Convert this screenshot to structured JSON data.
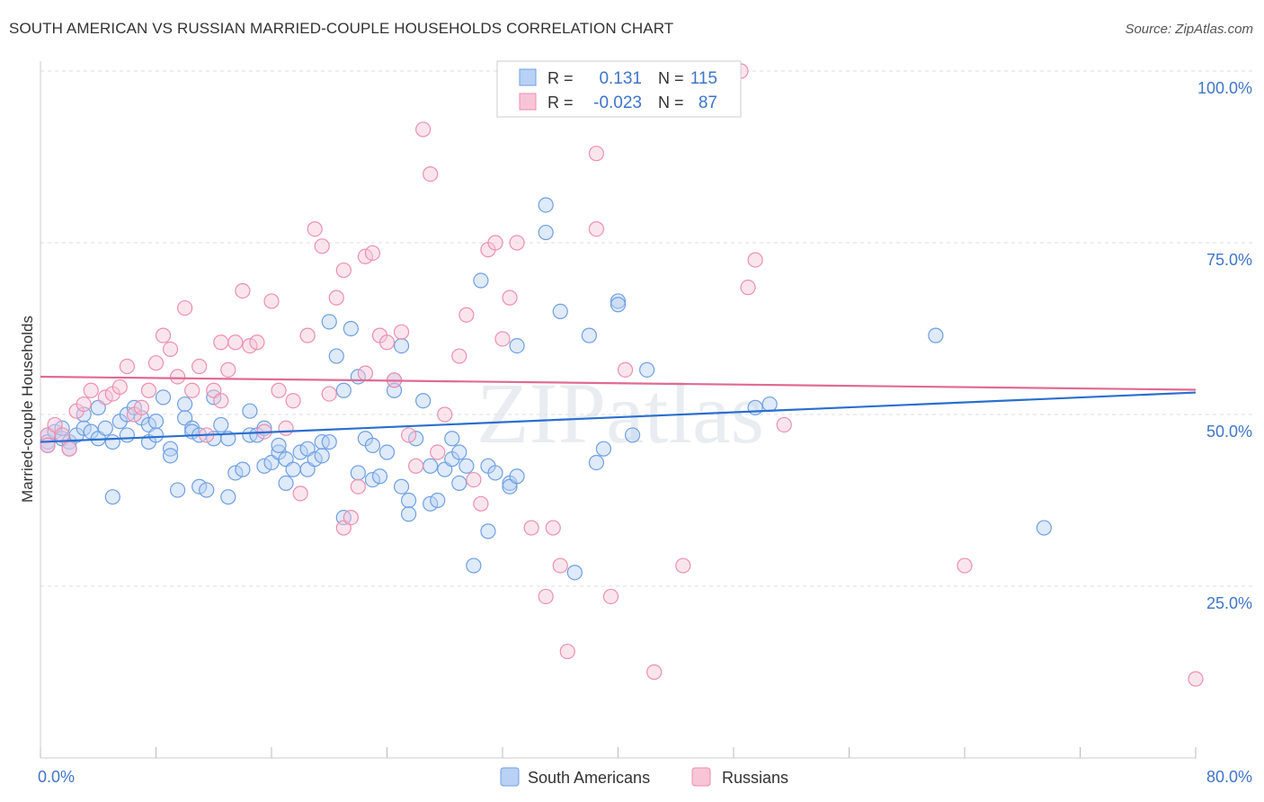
{
  "title": "SOUTH AMERICAN VS RUSSIAN MARRIED-COUPLE HOUSEHOLDS CORRELATION CHART",
  "source": "Source: ZipAtlas.com",
  "watermark": "ZIPatlas",
  "colors": {
    "south_americans": "#6e9fe3",
    "south_americans_fill": "#b9d1f4",
    "south_americans_line": "#2a6fcf",
    "russians": "#ec8fb0",
    "russians_fill": "#f7c5d6",
    "russians_line": "#e06b92",
    "axis_text": "#3f75c8",
    "grid": "#dddddd"
  },
  "legend_top": [
    {
      "series": "South Americans",
      "r_label": "R =",
      "r_value": "0.131",
      "n_label": "N =",
      "n_value": "115"
    },
    {
      "series": "Russians",
      "r_label": "R =",
      "r_value": "-0.023",
      "n_label": "N =",
      "n_value": "87"
    }
  ],
  "chart_data": {
    "type": "scatter",
    "title": "SOUTH AMERICAN VS RUSSIAN MARRIED-COUPLE HOUSEHOLDS CORRELATION CHART",
    "xlabel": "",
    "ylabel": "Married-couple Households",
    "xlim": [
      0,
      80
    ],
    "ylim": [
      0,
      102
    ],
    "x_tick_labels": [
      "0.0%",
      "80.0%"
    ],
    "y_ticks": [
      25,
      50,
      75,
      100
    ],
    "y_tick_labels": [
      "25.0%",
      "50.0%",
      "75.0%",
      "100.0%"
    ],
    "grid": "horizontal dashed",
    "legend_position": "bottom",
    "series": [
      {
        "name": "South Americans",
        "trend": {
          "x": [
            0,
            80
          ],
          "y": [
            46.0,
            53.2
          ]
        },
        "points": [
          [
            0.5,
            47.0
          ],
          [
            0.5,
            46.0
          ],
          [
            1.0,
            47.5
          ],
          [
            1.5,
            46.5
          ],
          [
            1.5,
            48.0
          ],
          [
            2.0,
            46.0
          ],
          [
            2.0,
            45.0
          ],
          [
            2.5,
            47.0
          ],
          [
            3.0,
            48.0
          ],
          [
            3.0,
            50.0
          ],
          [
            3.5,
            47.5
          ],
          [
            4.0,
            51.0
          ],
          [
            4.0,
            46.5
          ],
          [
            4.5,
            48.0
          ],
          [
            5.0,
            38.0
          ],
          [
            5.0,
            46.0
          ],
          [
            5.5,
            49.0
          ],
          [
            6.0,
            47.0
          ],
          [
            6.0,
            50.0
          ],
          [
            6.5,
            51.0
          ],
          [
            7.0,
            49.5
          ],
          [
            7.5,
            48.5
          ],
          [
            7.5,
            46.0
          ],
          [
            8.0,
            49.0
          ],
          [
            8.0,
            47.0
          ],
          [
            8.5,
            52.5
          ],
          [
            9.0,
            45.0
          ],
          [
            9.0,
            44.0
          ],
          [
            9.5,
            39.0
          ],
          [
            10.0,
            51.5
          ],
          [
            10.0,
            49.5
          ],
          [
            10.5,
            48.0
          ],
          [
            10.5,
            47.5
          ],
          [
            11.0,
            47.0
          ],
          [
            11.0,
            39.5
          ],
          [
            11.5,
            39.0
          ],
          [
            12.0,
            46.5
          ],
          [
            12.0,
            52.5
          ],
          [
            12.5,
            48.5
          ],
          [
            13.0,
            38.0
          ],
          [
            13.0,
            46.5
          ],
          [
            13.5,
            41.5
          ],
          [
            14.0,
            42.0
          ],
          [
            14.5,
            47.0
          ],
          [
            14.5,
            50.5
          ],
          [
            15.0,
            47.0
          ],
          [
            15.5,
            48.0
          ],
          [
            15.5,
            42.5
          ],
          [
            16.0,
            43.0
          ],
          [
            16.5,
            44.5
          ],
          [
            16.5,
            45.5
          ],
          [
            17.0,
            40.0
          ],
          [
            17.0,
            43.5
          ],
          [
            17.5,
            42.0
          ],
          [
            18.0,
            44.5
          ],
          [
            18.5,
            42.0
          ],
          [
            18.5,
            45.0
          ],
          [
            19.0,
            43.5
          ],
          [
            19.5,
            46.0
          ],
          [
            19.5,
            44.0
          ],
          [
            20.0,
            46.0
          ],
          [
            20.0,
            63.5
          ],
          [
            20.5,
            58.5
          ],
          [
            21.0,
            53.5
          ],
          [
            21.0,
            35.0
          ],
          [
            21.5,
            62.5
          ],
          [
            22.0,
            41.5
          ],
          [
            22.0,
            55.5
          ],
          [
            22.5,
            46.5
          ],
          [
            23.0,
            45.5
          ],
          [
            23.0,
            40.5
          ],
          [
            23.5,
            41.0
          ],
          [
            24.0,
            44.5
          ],
          [
            24.5,
            55.0
          ],
          [
            24.5,
            53.5
          ],
          [
            25.0,
            39.5
          ],
          [
            25.0,
            60.0
          ],
          [
            25.5,
            37.5
          ],
          [
            25.5,
            35.5
          ],
          [
            26.0,
            46.5
          ],
          [
            26.5,
            52.0
          ],
          [
            27.0,
            42.5
          ],
          [
            27.0,
            37.0
          ],
          [
            27.5,
            37.5
          ],
          [
            28.0,
            42.0
          ],
          [
            28.5,
            46.5
          ],
          [
            28.5,
            43.5
          ],
          [
            29.0,
            44.5
          ],
          [
            29.0,
            40.0
          ],
          [
            29.5,
            42.5
          ],
          [
            30.0,
            28.0
          ],
          [
            30.5,
            69.5
          ],
          [
            31.0,
            42.5
          ],
          [
            31.0,
            33.0
          ],
          [
            31.5,
            41.5
          ],
          [
            32.5,
            40.0
          ],
          [
            32.5,
            39.5
          ],
          [
            33.0,
            41.0
          ],
          [
            33.0,
            60.0
          ],
          [
            35.0,
            80.5
          ],
          [
            35.0,
            76.5
          ],
          [
            36.0,
            65.0
          ],
          [
            37.0,
            27.0
          ],
          [
            38.0,
            61.5
          ],
          [
            38.5,
            43.0
          ],
          [
            39.0,
            45.0
          ],
          [
            40.0,
            66.5
          ],
          [
            40.0,
            66.0
          ],
          [
            41.0,
            47.0
          ],
          [
            42.0,
            56.5
          ],
          [
            49.5,
            51.0
          ],
          [
            50.5,
            51.5
          ],
          [
            62.0,
            61.5
          ],
          [
            69.5,
            33.5
          ],
          [
            0.5,
            45.5
          ]
        ]
      },
      {
        "name": "Russians",
        "trend": {
          "x": [
            0,
            80
          ],
          "y": [
            55.5,
            53.6
          ]
        },
        "points": [
          [
            0.5,
            47.0
          ],
          [
            0.5,
            45.5
          ],
          [
            1.0,
            48.5
          ],
          [
            1.5,
            47.0
          ],
          [
            2.0,
            45.0
          ],
          [
            2.5,
            50.5
          ],
          [
            3.0,
            51.5
          ],
          [
            3.5,
            53.5
          ],
          [
            4.5,
            52.5
          ],
          [
            5.0,
            53.0
          ],
          [
            5.5,
            54.0
          ],
          [
            6.0,
            57.0
          ],
          [
            6.5,
            50.0
          ],
          [
            7.0,
            51.0
          ],
          [
            7.5,
            53.5
          ],
          [
            8.0,
            57.5
          ],
          [
            8.5,
            61.5
          ],
          [
            9.0,
            59.5
          ],
          [
            9.5,
            55.5
          ],
          [
            10.0,
            65.5
          ],
          [
            10.5,
            53.5
          ],
          [
            11.0,
            57.0
          ],
          [
            11.5,
            47.0
          ],
          [
            12.0,
            53.5
          ],
          [
            12.5,
            60.5
          ],
          [
            12.5,
            52.0
          ],
          [
            13.0,
            56.5
          ],
          [
            13.5,
            60.5
          ],
          [
            14.0,
            68.0
          ],
          [
            14.5,
            60.0
          ],
          [
            15.0,
            60.5
          ],
          [
            15.5,
            47.5
          ],
          [
            16.0,
            66.5
          ],
          [
            16.5,
            53.5
          ],
          [
            17.0,
            48.0
          ],
          [
            17.5,
            52.0
          ],
          [
            18.0,
            38.5
          ],
          [
            18.5,
            61.5
          ],
          [
            19.0,
            77.0
          ],
          [
            19.5,
            74.5
          ],
          [
            20.0,
            53.0
          ],
          [
            20.5,
            67.0
          ],
          [
            21.0,
            71.0
          ],
          [
            21.0,
            33.5
          ],
          [
            21.5,
            35.0
          ],
          [
            22.0,
            39.5
          ],
          [
            22.5,
            56.0
          ],
          [
            22.5,
            73.0
          ],
          [
            23.0,
            73.5
          ],
          [
            23.5,
            61.5
          ],
          [
            24.0,
            60.5
          ],
          [
            24.5,
            55.0
          ],
          [
            25.0,
            62.0
          ],
          [
            25.5,
            47.0
          ],
          [
            26.0,
            42.5
          ],
          [
            26.5,
            91.5
          ],
          [
            27.0,
            85.0
          ],
          [
            27.5,
            44.5
          ],
          [
            28.0,
            50.0
          ],
          [
            29.0,
            58.5
          ],
          [
            29.5,
            64.5
          ],
          [
            30.0,
            40.5
          ],
          [
            30.5,
            37.0
          ],
          [
            31.0,
            74.0
          ],
          [
            31.5,
            75.0
          ],
          [
            32.0,
            61.0
          ],
          [
            32.5,
            67.0
          ],
          [
            33.0,
            75.0
          ],
          [
            34.0,
            33.5
          ],
          [
            35.0,
            23.5
          ],
          [
            35.5,
            33.5
          ],
          [
            36.0,
            28.0
          ],
          [
            36.5,
            15.5
          ],
          [
            37.0,
            100.0
          ],
          [
            38.5,
            88.0
          ],
          [
            38.5,
            77.0
          ],
          [
            39.5,
            23.5
          ],
          [
            40.5,
            56.5
          ],
          [
            42.5,
            12.5
          ],
          [
            44.5,
            28.0
          ],
          [
            48.0,
            99.5
          ],
          [
            48.5,
            100.0
          ],
          [
            49.0,
            68.5
          ],
          [
            49.5,
            72.5
          ],
          [
            51.5,
            48.5
          ],
          [
            64.0,
            28.0
          ],
          [
            80.0,
            11.5
          ]
        ]
      }
    ]
  },
  "legend_bottom": [
    {
      "label": "South Americans"
    },
    {
      "label": "Russians"
    }
  ]
}
